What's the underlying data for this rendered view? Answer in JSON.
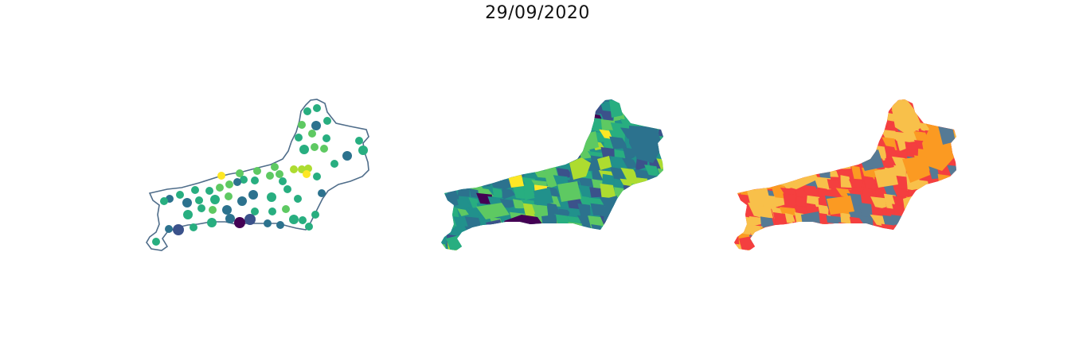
{
  "title": "29/09/2020",
  "colors": {
    "outline": "#4f6d8a",
    "viridis": [
      "#440154",
      "#3b528b",
      "#2c728e",
      "#21918c",
      "#28ae80",
      "#5ec962",
      "#addc30",
      "#fde725"
    ],
    "risk": [
      "#f43f3f",
      "#fb9a22",
      "#f8c04a",
      "#557a95"
    ]
  },
  "maps": [
    {
      "name": "points-map",
      "type": "proportional-points"
    },
    {
      "name": "viridis-choropleth",
      "type": "choropleth"
    },
    {
      "name": "risk-choropleth",
      "type": "choropleth"
    }
  ]
}
